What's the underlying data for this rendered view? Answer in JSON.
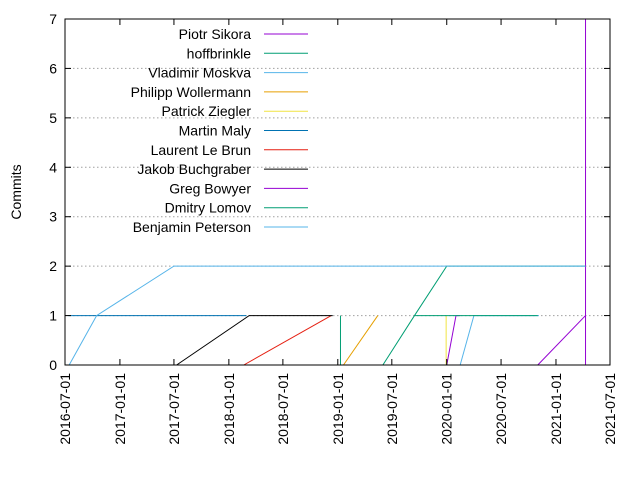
{
  "chart_data": {
    "type": "line",
    "ylabel": "Commits",
    "xlabel": "",
    "title": "",
    "xlim": [
      "2016-07-01",
      "2021-07-01"
    ],
    "ylim": [
      0,
      7
    ],
    "grid": "y-dotted",
    "legend_placement": "top-left",
    "x_ticks": [
      "2016-07-01",
      "2017-01-01",
      "2017-07-01",
      "2018-01-01",
      "2018-07-01",
      "2019-01-01",
      "2019-07-01",
      "2020-01-01",
      "2020-07-01",
      "2021-01-01",
      "2021-07-01"
    ],
    "y_ticks": [
      0,
      1,
      2,
      3,
      4,
      5,
      6,
      7
    ],
    "series": [
      {
        "name": "Piotr Sikora",
        "color": "#9400d3",
        "points": [
          [
            "2021-04-10",
            0
          ],
          [
            "2021-04-10",
            7
          ]
        ]
      },
      {
        "name": "hoffbrinkle",
        "color": "#009e73",
        "points": [
          [
            "2019-01-10",
            0
          ],
          [
            "2019-01-10",
            1
          ]
        ]
      },
      {
        "name": "Vladimir Moskva",
        "color": "#56b4e9",
        "points": [
          [
            "2020-02-15",
            0
          ],
          [
            "2020-04-01",
            1
          ],
          [
            "2020-11-05",
            1
          ]
        ]
      },
      {
        "name": "Philipp Wollermann",
        "color": "#e69f00",
        "points": [
          [
            "2019-01-20",
            0
          ],
          [
            "2019-05-15",
            1
          ]
        ]
      },
      {
        "name": "Patrick Ziegler",
        "color": "#f0e442",
        "points": [
          [
            "2019-12-30",
            0
          ],
          [
            "2019-12-30",
            1
          ]
        ]
      },
      {
        "name": "Martin Maly",
        "color": "#0072b2",
        "points": [
          [
            "2016-07-10",
            1
          ],
          [
            "2018-03-01",
            1
          ]
        ]
      },
      {
        "name": "Laurent Le Brun",
        "color": "#e51e10",
        "points": [
          [
            "2018-02-20",
            0
          ],
          [
            "2018-12-10",
            1
          ]
        ]
      },
      {
        "name": "Jakob Buchgraber",
        "color": "#000000",
        "points": [
          [
            "2017-07-10",
            0
          ],
          [
            "2018-03-10",
            1
          ],
          [
            "2018-12-15",
            1
          ]
        ]
      },
      {
        "name": "Greg Bowyer",
        "color": "#9400d3",
        "points": [
          [
            "2020-01-01",
            0
          ],
          [
            "2020-02-01",
            1
          ],
          [
            "2020-02-15",
            1
          ]
        ]
      },
      {
        "name": "Dmitry Lomov",
        "color": "#009e73",
        "points": [
          [
            "2019-06-01",
            0
          ],
          [
            "2019-09-15",
            1
          ],
          [
            "2020-01-01",
            2
          ],
          [
            "2020-11-01",
            2
          ],
          [
            "2021-04-10",
            2
          ]
        ]
      },
      {
        "name": "Benjamin Peterson",
        "color": "#56b4e9",
        "points": [
          [
            "2016-07-15",
            0
          ],
          [
            "2016-10-15",
            1
          ],
          [
            "2017-07-01",
            2
          ],
          [
            "2021-04-10",
            2
          ]
        ]
      }
    ],
    "extra_segments": [
      {
        "color": "#009e73",
        "points": [
          [
            "2019-09-15",
            1
          ],
          [
            "2020-11-01",
            1
          ]
        ]
      },
      {
        "color": "#9400d3",
        "points": [
          [
            "2020-11-01",
            0
          ],
          [
            "2021-04-10",
            1
          ]
        ]
      }
    ]
  }
}
